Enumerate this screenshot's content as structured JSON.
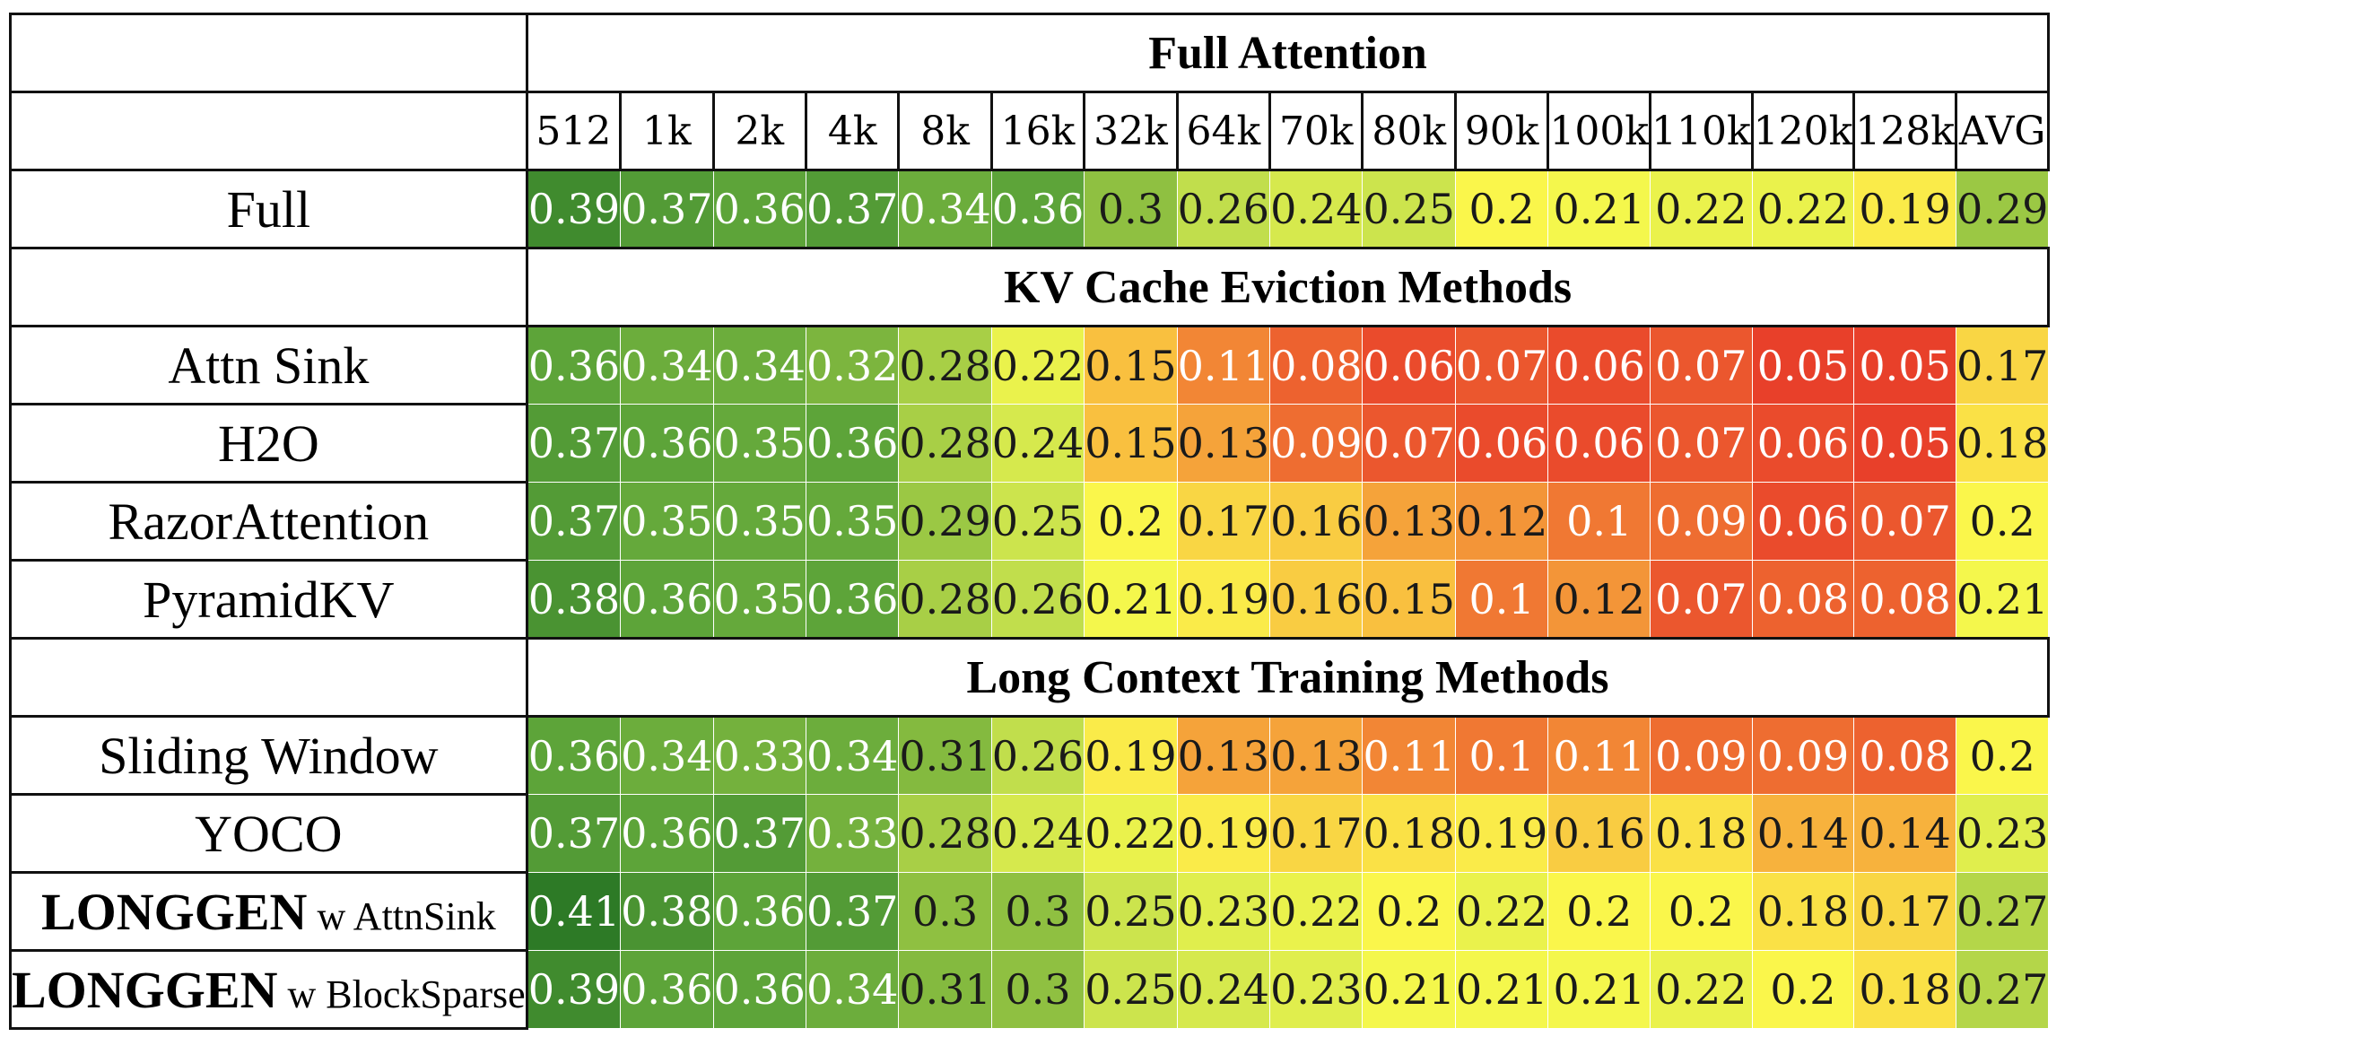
{
  "chart_data": {
    "type": "heatmap",
    "columns": [
      "512",
      "1k",
      "2k",
      "4k",
      "8k",
      "16k",
      "32k",
      "64k",
      "70k",
      "80k",
      "90k",
      "100k",
      "110k",
      "120k",
      "128k",
      "AVG"
    ],
    "sections": [
      {
        "title": "Full Attention",
        "rows": [
          {
            "label": "Full",
            "values": [
              0.39,
              0.37,
              0.36,
              0.37,
              0.34,
              0.36,
              0.3,
              0.26,
              0.24,
              0.25,
              0.2,
              0.21,
              0.22,
              0.22,
              0.19,
              0.29
            ]
          }
        ]
      },
      {
        "title": "KV Cache Eviction Methods",
        "rows": [
          {
            "label": "Attn Sink",
            "values": [
              0.36,
              0.34,
              0.34,
              0.32,
              0.28,
              0.22,
              0.15,
              0.11,
              0.08,
              0.06,
              0.07,
              0.06,
              0.07,
              0.05,
              0.05,
              0.17
            ]
          },
          {
            "label": "H2O",
            "values": [
              0.37,
              0.36,
              0.35,
              0.36,
              0.28,
              0.24,
              0.15,
              0.13,
              0.09,
              0.07,
              0.06,
              0.06,
              0.07,
              0.06,
              0.05,
              0.18
            ]
          },
          {
            "label": "RazorAttention",
            "values": [
              0.37,
              0.35,
              0.35,
              0.35,
              0.29,
              0.25,
              0.2,
              0.17,
              0.16,
              0.13,
              0.12,
              0.1,
              0.09,
              0.06,
              0.07,
              0.2
            ]
          },
          {
            "label": "PyramidKV",
            "values": [
              0.38,
              0.36,
              0.35,
              0.36,
              0.28,
              0.26,
              0.21,
              0.19,
              0.16,
              0.15,
              0.1,
              0.12,
              0.07,
              0.08,
              0.08,
              0.21
            ]
          }
        ]
      },
      {
        "title": "Long Context Training Methods",
        "rows": [
          {
            "label": "Sliding Window",
            "values": [
              0.36,
              0.34,
              0.33,
              0.34,
              0.31,
              0.26,
              0.19,
              0.13,
              0.13,
              0.11,
              0.1,
              0.11,
              0.09,
              0.09,
              0.08,
              0.2
            ]
          },
          {
            "label": "YOCO",
            "values": [
              0.37,
              0.36,
              0.37,
              0.33,
              0.28,
              0.24,
              0.22,
              0.19,
              0.17,
              0.18,
              0.19,
              0.16,
              0.18,
              0.14,
              0.14,
              0.23
            ]
          },
          {
            "label": "LONGGEN w AttnSink",
            "brand": "LONGGEN",
            "suffix": "w AttnSink",
            "values": [
              0.41,
              0.38,
              0.36,
              0.37,
              0.3,
              0.3,
              0.25,
              0.23,
              0.22,
              0.2,
              0.22,
              0.2,
              0.2,
              0.18,
              0.17,
              0.27
            ]
          },
          {
            "label": "LONGGEN w BlockSparse",
            "brand": "LONGGEN",
            "suffix": "w BlockSparse",
            "values": [
              0.39,
              0.36,
              0.36,
              0.34,
              0.31,
              0.3,
              0.25,
              0.24,
              0.23,
              0.21,
              0.21,
              0.21,
              0.22,
              0.2,
              0.18,
              0.27
            ]
          }
        ]
      }
    ],
    "color_scale": {
      "min": 0.05,
      "max": 0.41,
      "stops": [
        "#e8402a",
        "#f07a33",
        "#f9c440",
        "#fafa4c",
        "#c6e14d",
        "#86bb3f",
        "#5ea53a",
        "#2d7a26"
      ]
    },
    "light_text_color": "#ffffff",
    "dark_text_color": "#1a1a1a"
  }
}
